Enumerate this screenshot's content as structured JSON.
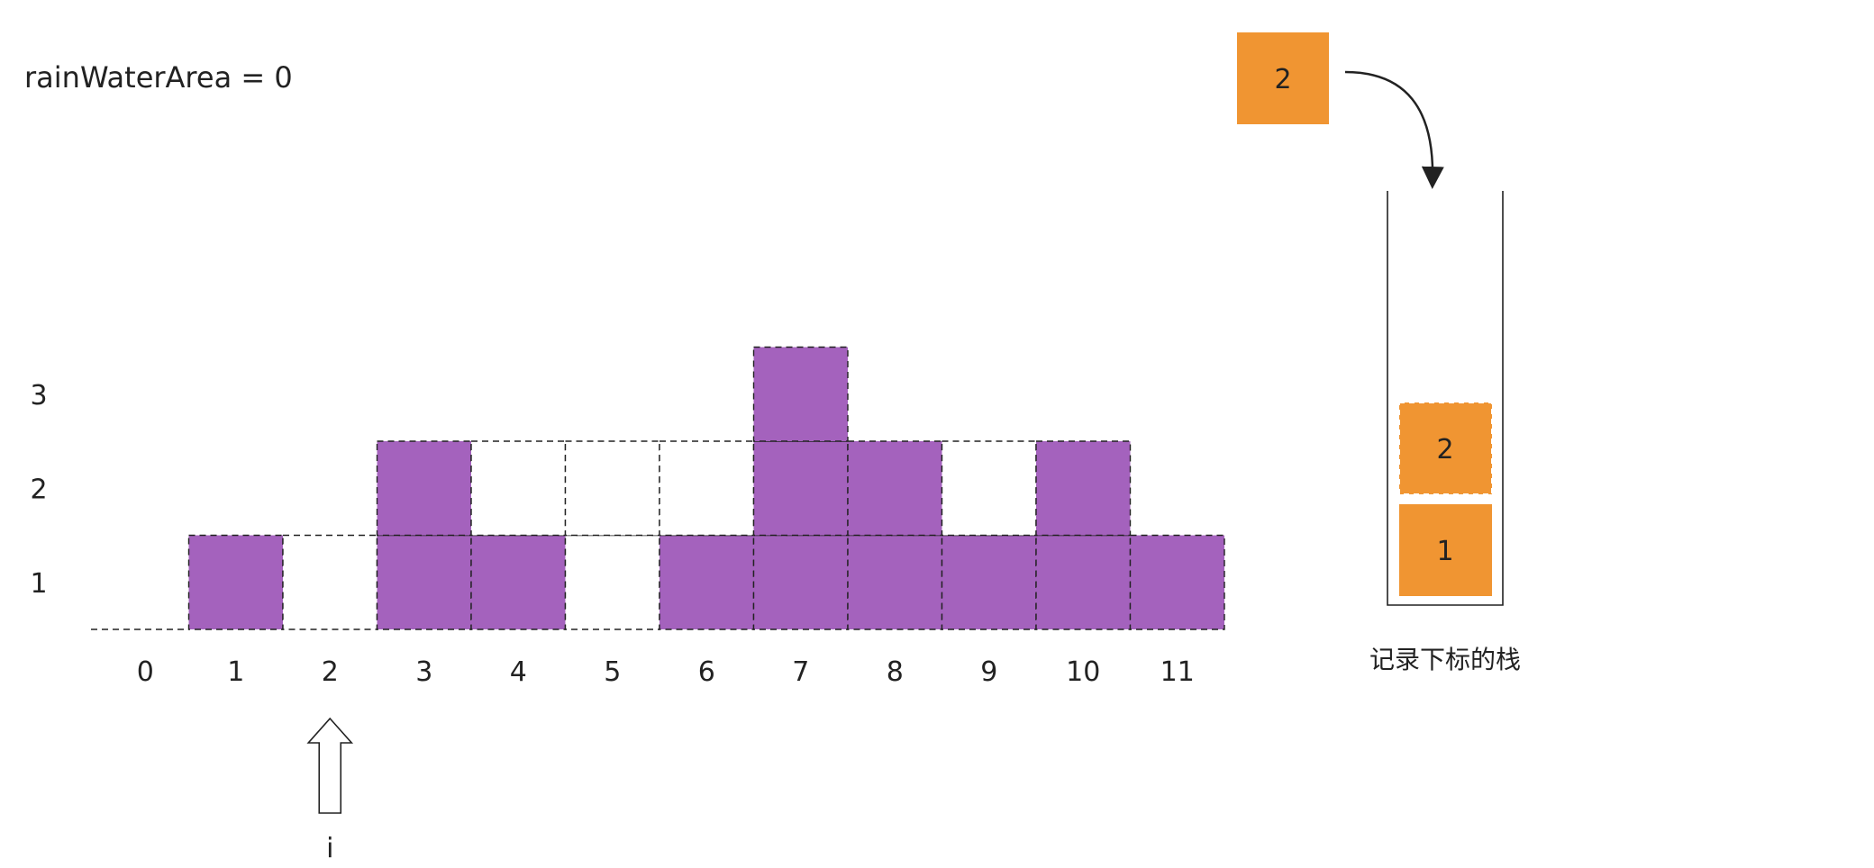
{
  "header": {
    "text": "rainWaterArea = 0"
  },
  "chart_data": {
    "type": "bar",
    "heights": [
      0,
      1,
      0,
      2,
      1,
      0,
      1,
      3,
      2,
      1,
      2,
      1
    ],
    "water_level": [
      0,
      1,
      1,
      2,
      2,
      2,
      2,
      3,
      2,
      2,
      2,
      1
    ],
    "x_labels": [
      "0",
      "1",
      "2",
      "3",
      "4",
      "5",
      "6",
      "7",
      "8",
      "9",
      "10",
      "11"
    ],
    "y_labels": [
      "1",
      "2",
      "3"
    ],
    "ylim": [
      0,
      3
    ],
    "pointer": {
      "label": "i",
      "index": 2
    }
  },
  "stack": {
    "caption": "记录下标的栈",
    "items": [
      "1",
      "2"
    ],
    "incoming": "2"
  },
  "colors": {
    "bar": "#a462bd",
    "block": "#f09532",
    "outline": "#222222"
  }
}
